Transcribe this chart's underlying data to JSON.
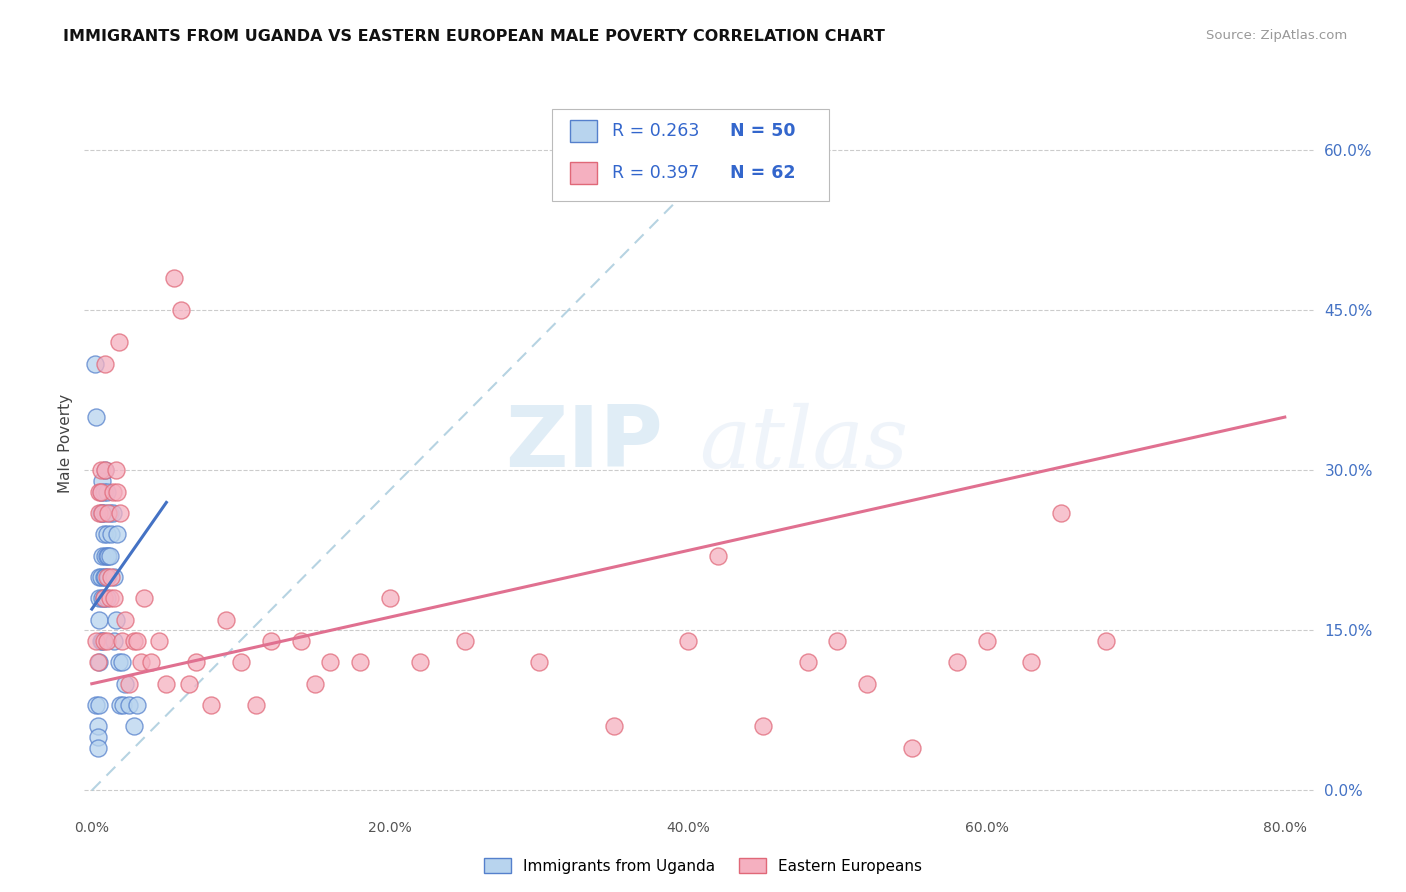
{
  "title": "IMMIGRANTS FROM UGANDA VS EASTERN EUROPEAN MALE POVERTY CORRELATION CHART",
  "source": "Source: ZipAtlas.com",
  "ylabel": "Male Poverty",
  "xlim": [
    -0.005,
    0.82
  ],
  "ylim": [
    -0.02,
    0.67
  ],
  "xticks": [
    0.0,
    0.2,
    0.4,
    0.6,
    0.8
  ],
  "xticklabels": [
    "0.0%",
    "20.0%",
    "40.0%",
    "60.0%",
    "80.0%"
  ],
  "yticks_right": [
    0.0,
    0.15,
    0.3,
    0.45,
    0.6
  ],
  "yticklabels_right": [
    "0.0%",
    "15.0%",
    "30.0%",
    "45.0%",
    "60.0%"
  ],
  "color_uganda": "#b8d4ee",
  "color_eastern": "#f5b0c0",
  "color_uganda_edge": "#5580cc",
  "color_eastern_edge": "#e06878",
  "color_uganda_line": "#4472c4",
  "color_eastern_line": "#e07090",
  "legend_label1": "Immigrants from Uganda",
  "legend_label2": "Eastern Europeans",
  "watermark_zip": "ZIP",
  "watermark_atlas": "atlas",
  "uganda_x": [
    0.002,
    0.003,
    0.003,
    0.004,
    0.004,
    0.004,
    0.005,
    0.005,
    0.005,
    0.005,
    0.005,
    0.006,
    0.006,
    0.006,
    0.006,
    0.007,
    0.007,
    0.007,
    0.007,
    0.007,
    0.008,
    0.008,
    0.008,
    0.008,
    0.009,
    0.009,
    0.009,
    0.009,
    0.01,
    0.01,
    0.01,
    0.01,
    0.011,
    0.011,
    0.012,
    0.012,
    0.013,
    0.014,
    0.015,
    0.015,
    0.016,
    0.017,
    0.018,
    0.019,
    0.02,
    0.021,
    0.022,
    0.025,
    0.028,
    0.03
  ],
  "uganda_y": [
    0.4,
    0.35,
    0.08,
    0.06,
    0.05,
    0.04,
    0.2,
    0.18,
    0.16,
    0.12,
    0.08,
    0.28,
    0.26,
    0.2,
    0.14,
    0.29,
    0.26,
    0.22,
    0.18,
    0.14,
    0.28,
    0.24,
    0.2,
    0.18,
    0.3,
    0.26,
    0.22,
    0.2,
    0.28,
    0.24,
    0.22,
    0.18,
    0.22,
    0.2,
    0.26,
    0.22,
    0.24,
    0.26,
    0.2,
    0.14,
    0.16,
    0.24,
    0.12,
    0.08,
    0.12,
    0.08,
    0.1,
    0.08,
    0.06,
    0.08
  ],
  "eastern_x": [
    0.003,
    0.004,
    0.005,
    0.005,
    0.006,
    0.006,
    0.007,
    0.008,
    0.008,
    0.009,
    0.009,
    0.01,
    0.01,
    0.011,
    0.012,
    0.013,
    0.014,
    0.015,
    0.016,
    0.017,
    0.018,
    0.019,
    0.02,
    0.022,
    0.025,
    0.028,
    0.03,
    0.033,
    0.035,
    0.04,
    0.045,
    0.05,
    0.055,
    0.06,
    0.065,
    0.07,
    0.08,
    0.09,
    0.1,
    0.11,
    0.12,
    0.14,
    0.15,
    0.16,
    0.18,
    0.2,
    0.22,
    0.25,
    0.3,
    0.35,
    0.4,
    0.42,
    0.45,
    0.48,
    0.5,
    0.52,
    0.55,
    0.58,
    0.6,
    0.63,
    0.65,
    0.68
  ],
  "eastern_y": [
    0.14,
    0.12,
    0.28,
    0.26,
    0.3,
    0.28,
    0.26,
    0.18,
    0.14,
    0.4,
    0.3,
    0.2,
    0.14,
    0.26,
    0.18,
    0.2,
    0.28,
    0.18,
    0.3,
    0.28,
    0.42,
    0.26,
    0.14,
    0.16,
    0.1,
    0.14,
    0.14,
    0.12,
    0.18,
    0.12,
    0.14,
    0.1,
    0.48,
    0.45,
    0.1,
    0.12,
    0.08,
    0.16,
    0.12,
    0.08,
    0.14,
    0.14,
    0.1,
    0.12,
    0.12,
    0.18,
    0.12,
    0.14,
    0.12,
    0.06,
    0.14,
    0.22,
    0.06,
    0.12,
    0.14,
    0.1,
    0.04,
    0.12,
    0.14,
    0.12,
    0.26,
    0.14
  ],
  "uganda_trend_x": [
    0.0,
    0.05
  ],
  "uganda_trend_y_start": 0.17,
  "uganda_trend_y_end": 0.27,
  "eastern_trend_x": [
    0.0,
    0.8
  ],
  "eastern_trend_y_start": 0.1,
  "eastern_trend_y_end": 0.35,
  "dash_line_x": [
    0.0,
    0.44
  ],
  "dash_line_y": [
    0.0,
    0.62
  ]
}
